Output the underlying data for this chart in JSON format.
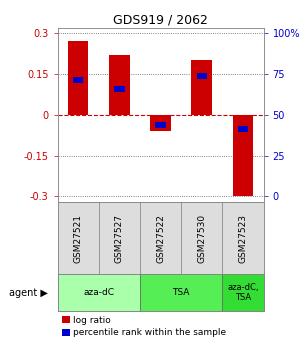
{
  "title": "GDS919 / 2062",
  "samples": [
    "GSM27521",
    "GSM27527",
    "GSM27522",
    "GSM27530",
    "GSM27523"
  ],
  "log_ratios": [
    0.27,
    0.22,
    -0.06,
    0.2,
    -0.3
  ],
  "percentile_ranks": [
    0.7,
    0.65,
    0.44,
    0.72,
    0.42
  ],
  "agents": [
    {
      "label": "aza-dC",
      "color": "#aaffaa",
      "span": [
        0,
        2
      ]
    },
    {
      "label": "TSA",
      "color": "#55ee55",
      "span": [
        2,
        4
      ]
    },
    {
      "label": "aza-dC,\nTSA",
      "color": "#33dd33",
      "span": [
        4,
        5
      ]
    }
  ],
  "ylim": [
    -0.32,
    0.32
  ],
  "yticks": [
    -0.3,
    -0.15,
    0,
    0.15,
    0.3
  ],
  "ytick_labels_left": [
    "-0.3",
    "-0.15",
    "0",
    "0.15",
    "0.3"
  ],
  "ytick_labels_right": [
    "0",
    "25",
    "50",
    "75",
    "100%"
  ],
  "bar_color": "#cc0000",
  "blue_color": "#0000cc",
  "bg_color": "#ffffff",
  "bar_width": 0.5,
  "blue_bar_width": 0.25,
  "blue_bar_height": 0.022
}
